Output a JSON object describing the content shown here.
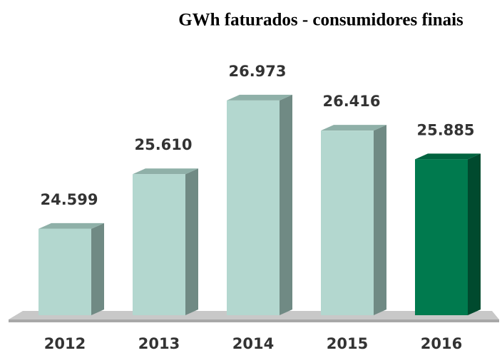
{
  "chart_data": {
    "type": "bar3d",
    "title": "GWh faturados - consumidores finais",
    "categories": [
      "2012",
      "2013",
      "2014",
      "2015",
      "2016"
    ],
    "values": [
      24599,
      25610,
      26973,
      26416,
      25885
    ],
    "value_labels": [
      "24.599",
      "25.610",
      "26.973",
      "26.416",
      "25.885"
    ],
    "colors": [
      "#b3d7cf",
      "#b3d7cf",
      "#b3d7cf",
      "#b3d7cf",
      "#007a4e"
    ],
    "side_colors": [
      "#708a84",
      "#708a84",
      "#708a84",
      "#708a84",
      "#004a2e"
    ],
    "top_colors": [
      "#8fb0a8",
      "#8fb0a8",
      "#8fb0a8",
      "#8fb0a8",
      "#00633f"
    ],
    "ylim": [
      23000,
      27500
    ]
  }
}
